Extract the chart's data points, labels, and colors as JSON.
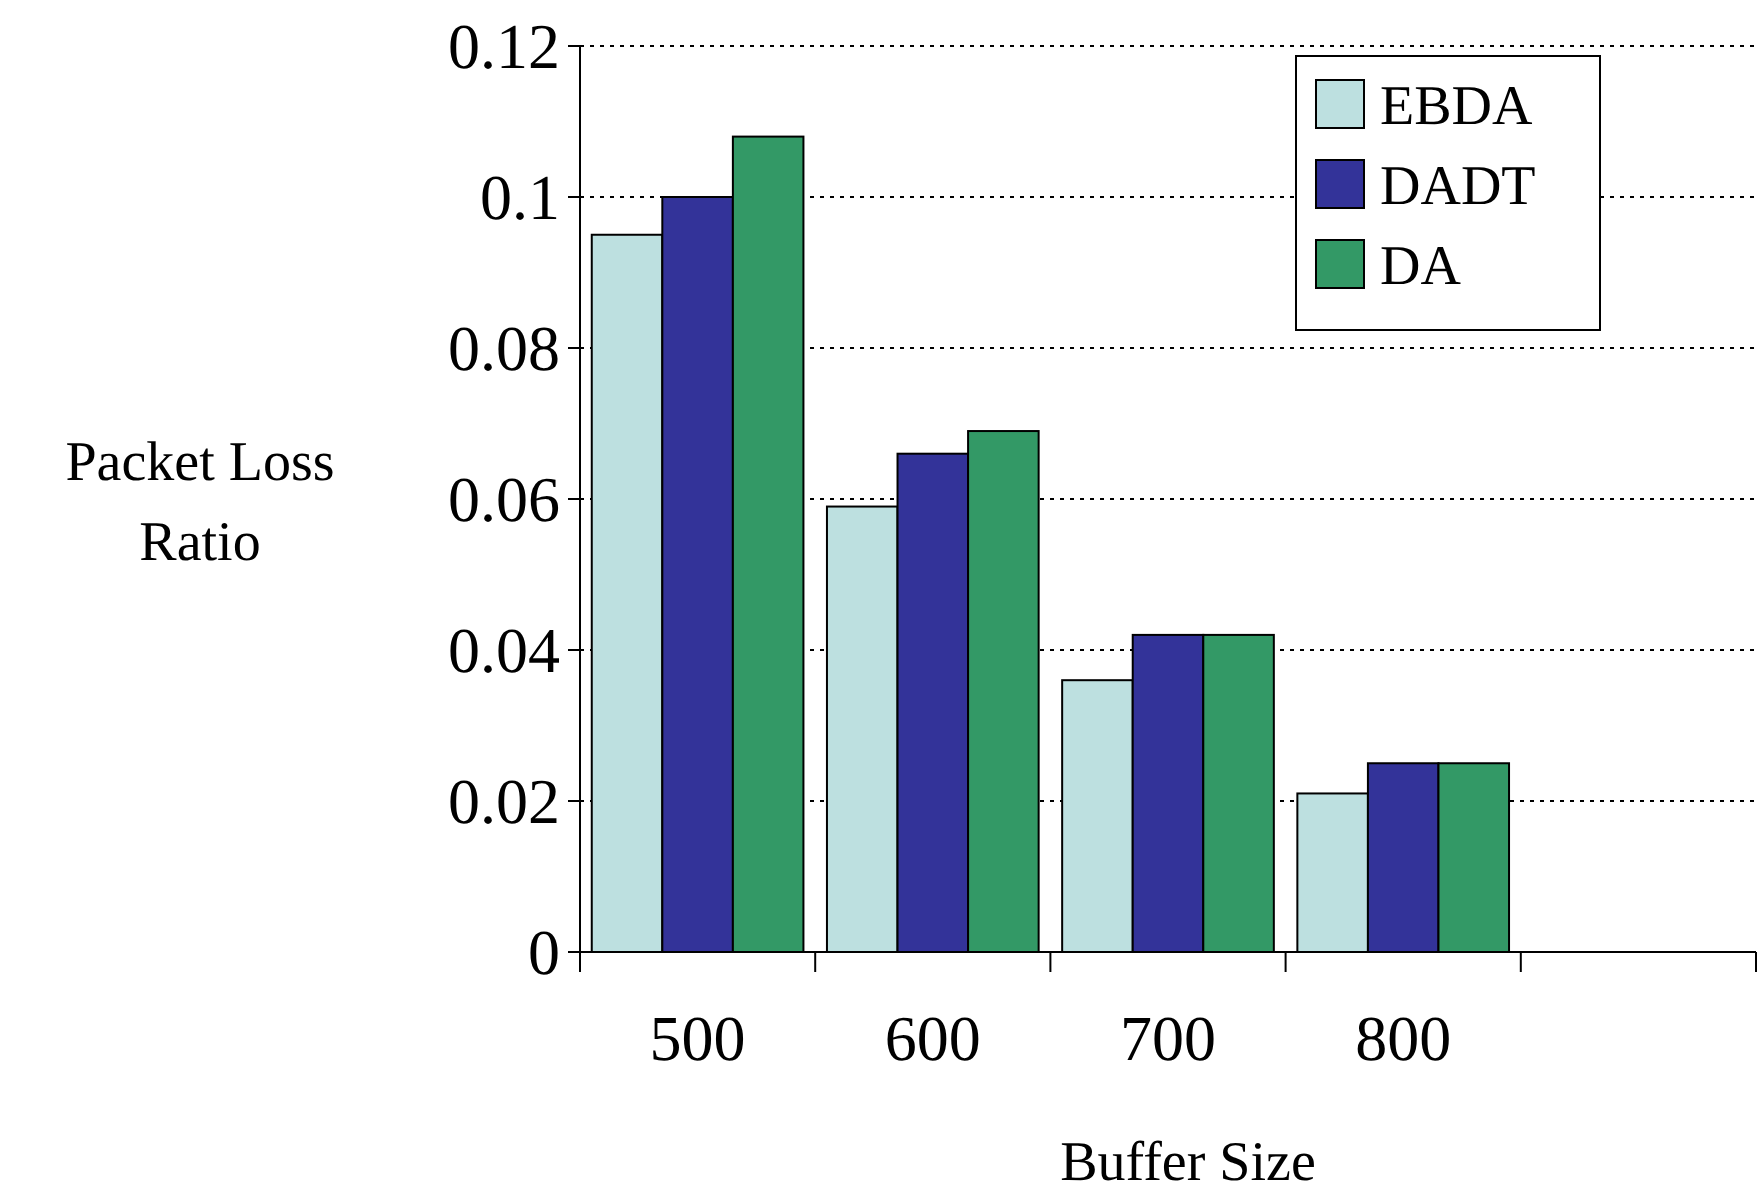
{
  "chart_data": {
    "type": "bar",
    "xlabel": "Buffer Size",
    "ylabel": "Packet Loss Ratio",
    "categories": [
      "500",
      "600",
      "700",
      "800",
      null
    ],
    "series": [
      {
        "name": "EBDA",
        "color": "#bde0e0",
        "values": [
          0.095,
          0.059,
          0.036,
          0.021,
          null
        ]
      },
      {
        "name": "DADT",
        "color": "#333399",
        "values": [
          0.1,
          0.066,
          0.042,
          0.025,
          null
        ]
      },
      {
        "name": "DA",
        "color": "#339966",
        "values": [
          0.108,
          0.069,
          0.042,
          0.025,
          null
        ]
      }
    ],
    "ylim": [
      0,
      0.12
    ],
    "yticks": [
      0,
      0.02,
      0.04,
      0.06,
      0.08,
      0.1,
      0.12
    ],
    "grid": "y",
    "legend": "top right"
  }
}
